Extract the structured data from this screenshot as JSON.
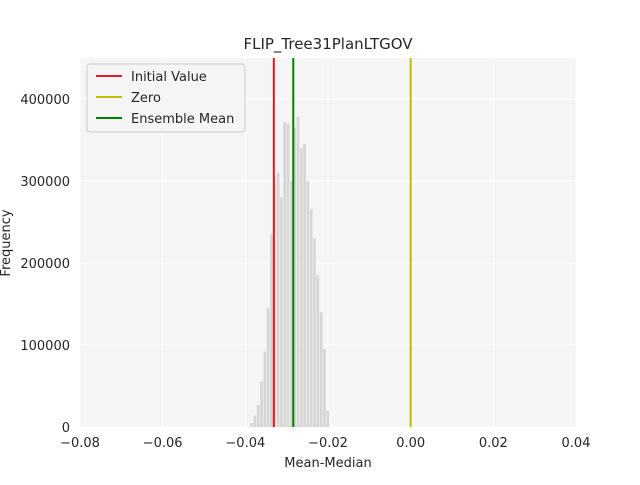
{
  "chart_data": {
    "type": "bar",
    "title": "FLIP_Tree31PlanLTGOV",
    "xlabel": "Mean-Median",
    "ylabel": "Frequency",
    "xlim": [
      -0.08,
      0.04
    ],
    "ylim": [
      0,
      450000
    ],
    "grid": true,
    "xticks": [
      -0.08,
      -0.06,
      -0.04,
      -0.02,
      0.0,
      0.02,
      0.04
    ],
    "xtick_labels": [
      "−0.08",
      "−0.06",
      "−0.04",
      "−0.02",
      "0.00",
      "0.02",
      "0.04"
    ],
    "yticks": [
      0,
      100000,
      200000,
      300000,
      400000
    ],
    "ytick_labels": [
      "0",
      "100000",
      "200000",
      "300000",
      "400000"
    ],
    "histogram": {
      "color": "#d6d6d6",
      "bin_centers": [
        -0.0384,
        -0.0376,
        -0.0368,
        -0.036,
        -0.0352,
        -0.0344,
        -0.0336,
        -0.0328,
        -0.032,
        -0.0312,
        -0.0304,
        -0.0296,
        -0.0288,
        -0.028,
        -0.0272,
        -0.0264,
        -0.0256,
        -0.0248,
        -0.024,
        -0.0232,
        -0.0224,
        -0.0216,
        -0.0208,
        -0.02
      ],
      "counts": [
        5000,
        14000,
        27000,
        55000,
        92000,
        145000,
        235000,
        305000,
        310000,
        280000,
        372000,
        370000,
        300000,
        365000,
        378000,
        340000,
        345000,
        300000,
        265000,
        230000,
        185000,
        140000,
        95000,
        20000
      ]
    },
    "vlines": [
      {
        "name": "Initial Value",
        "x": -0.0331,
        "color": "#e41a1c"
      },
      {
        "name": "Zero",
        "x": 0.0,
        "color": "#bfbf00"
      },
      {
        "name": "Ensemble Mean",
        "x": -0.0284,
        "color": "#008000"
      }
    ],
    "legend": {
      "placement": "upper-left",
      "entries": [
        "Initial Value",
        "Zero",
        "Ensemble Mean"
      ]
    },
    "colors": {
      "plot_background": "#f5f5f5",
      "grid": "#ffffff"
    }
  }
}
